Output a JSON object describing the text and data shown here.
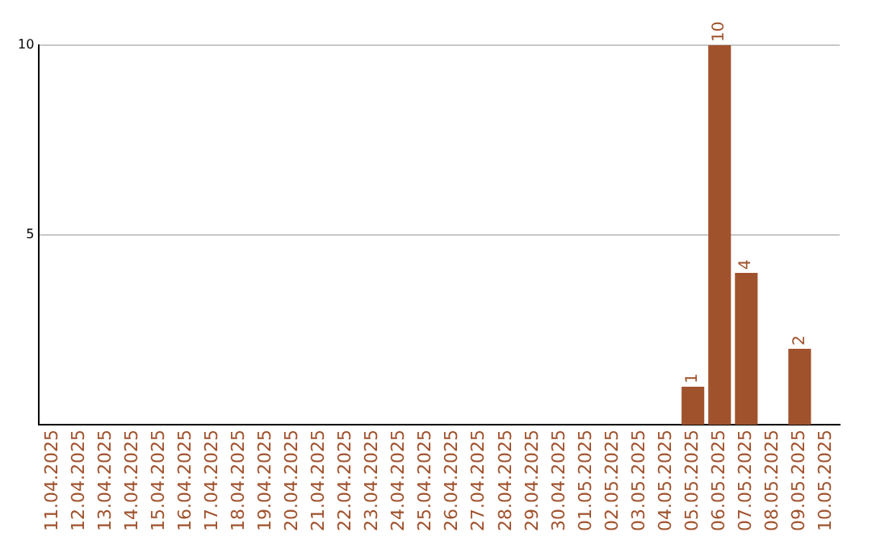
{
  "chart_data": {
    "type": "bar",
    "categories": [
      "11.04.2025",
      "12.04.2025",
      "13.04.2025",
      "14.04.2025",
      "15.04.2025",
      "16.04.2025",
      "17.04.2025",
      "18.04.2025",
      "19.04.2025",
      "20.04.2025",
      "21.04.2025",
      "22.04.2025",
      "23.04.2025",
      "24.04.2025",
      "25.04.2025",
      "26.04.2025",
      "27.04.2025",
      "28.04.2025",
      "29.04.2025",
      "30.04.2025",
      "01.05.2025",
      "02.05.2025",
      "03.05.2025",
      "04.05.2025",
      "05.05.2025",
      "06.05.2025",
      "07.05.2025",
      "08.05.2025",
      "09.05.2025",
      "10.05.2025"
    ],
    "values": [
      0,
      0,
      0,
      0,
      0,
      0,
      0,
      0,
      0,
      0,
      0,
      0,
      0,
      0,
      0,
      0,
      0,
      0,
      0,
      0,
      0,
      0,
      0,
      0,
      1,
      10,
      4,
      0,
      2,
      0
    ],
    "value_labels": [
      null,
      null,
      null,
      null,
      null,
      null,
      null,
      null,
      null,
      null,
      null,
      null,
      null,
      null,
      null,
      null,
      null,
      null,
      null,
      null,
      null,
      null,
      null,
      null,
      "1",
      "10",
      "4",
      null,
      "2",
      null
    ],
    "color": "#a0522d",
    "ylim": [
      0,
      10
    ],
    "yticks": [
      5,
      10
    ],
    "grid": "y",
    "legend": false
  }
}
